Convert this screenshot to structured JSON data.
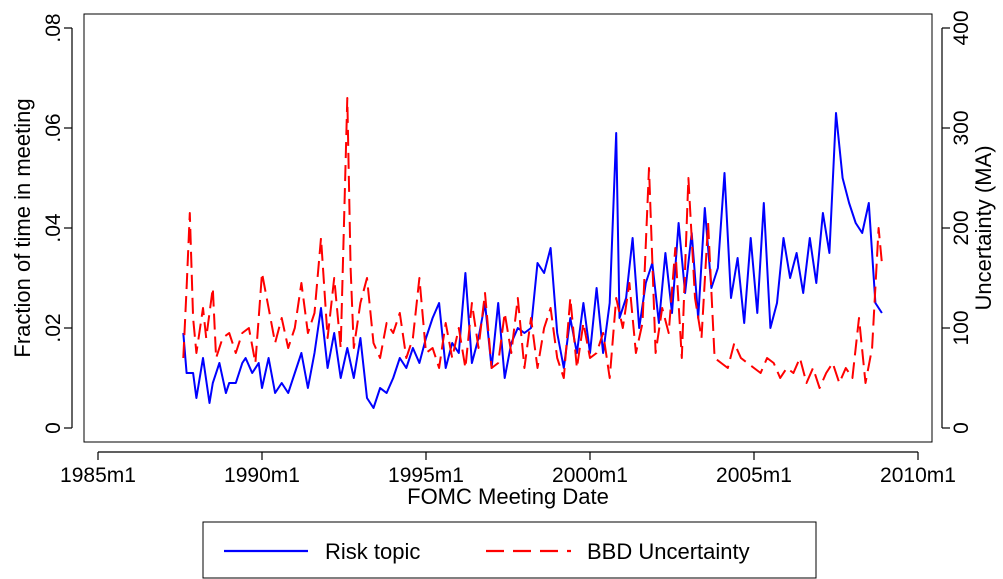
{
  "chart_data": {
    "type": "line",
    "xlabel": "FOMC Meeting Date",
    "ylabel_left": "Fraction of time in meeting",
    "ylabel_right": "Uncertainty (MA)",
    "x_ticks": [
      "1985m1",
      "1990m1",
      "1995m1",
      "2000m1",
      "2005m1",
      "2010m1"
    ],
    "y_left_ticks": [
      "0",
      ".02",
      ".04",
      ".06",
      ".08"
    ],
    "y_right_ticks": [
      "0",
      "100",
      "200",
      "300",
      "400"
    ],
    "xlim": [
      1985.0,
      2010.0
    ],
    "ylim_left": [
      0,
      0.08
    ],
    "ylim_right": [
      0,
      400
    ],
    "legend_position": "bottom-center",
    "grid": false,
    "series": [
      {
        "name": "Risk topic",
        "axis": "left",
        "color": "#0000ff",
        "style": "solid",
        "x": [
          1987.6,
          1987.7,
          1987.9,
          1988.0,
          1988.2,
          1988.4,
          1988.5,
          1988.7,
          1988.9,
          1989.0,
          1989.2,
          1989.4,
          1989.5,
          1989.7,
          1989.9,
          1990.0,
          1990.2,
          1990.4,
          1990.6,
          1990.8,
          1991.0,
          1991.2,
          1991.4,
          1991.6,
          1991.8,
          1992.0,
          1992.2,
          1992.4,
          1992.6,
          1992.8,
          1993.0,
          1993.2,
          1993.4,
          1993.6,
          1993.8,
          1994.0,
          1994.2,
          1994.4,
          1994.6,
          1994.8,
          1995.0,
          1995.2,
          1995.4,
          1995.6,
          1995.8,
          1996.0,
          1996.2,
          1996.4,
          1996.6,
          1996.8,
          1997.0,
          1997.2,
          1997.4,
          1997.6,
          1997.8,
          1998.0,
          1998.2,
          1998.4,
          1998.6,
          1998.8,
          1999.0,
          1999.2,
          1999.4,
          1999.6,
          1999.8,
          2000.0,
          2000.2,
          2000.4,
          2000.6,
          2000.8,
          2000.9,
          2001.1,
          2001.3,
          2001.5,
          2001.7,
          2001.9,
          2002.1,
          2002.3,
          2002.5,
          2002.7,
          2002.9,
          2003.1,
          2003.3,
          2003.5,
          2003.7,
          2003.9,
          2004.1,
          2004.3,
          2004.5,
          2004.7,
          2004.9,
          2005.1,
          2005.3,
          2005.5,
          2005.7,
          2005.9,
          2006.1,
          2006.3,
          2006.5,
          2006.7,
          2006.9,
          2007.1,
          2007.3,
          2007.5,
          2007.7,
          2007.9,
          2008.1,
          2008.3,
          2008.5,
          2008.7,
          2008.9
        ],
        "y": [
          0.019,
          0.011,
          0.011,
          0.006,
          0.014,
          0.005,
          0.009,
          0.013,
          0.007,
          0.009,
          0.009,
          0.013,
          0.014,
          0.011,
          0.013,
          0.008,
          0.014,
          0.007,
          0.009,
          0.007,
          0.011,
          0.015,
          0.008,
          0.015,
          0.024,
          0.012,
          0.019,
          0.01,
          0.016,
          0.01,
          0.018,
          0.006,
          0.004,
          0.008,
          0.007,
          0.01,
          0.014,
          0.012,
          0.016,
          0.013,
          0.018,
          0.022,
          0.025,
          0.012,
          0.017,
          0.015,
          0.031,
          0.013,
          0.018,
          0.025,
          0.012,
          0.025,
          0.01,
          0.017,
          0.02,
          0.019,
          0.02,
          0.033,
          0.031,
          0.036,
          0.019,
          0.012,
          0.022,
          0.015,
          0.025,
          0.015,
          0.028,
          0.015,
          0.025,
          0.059,
          0.022,
          0.026,
          0.038,
          0.02,
          0.029,
          0.033,
          0.021,
          0.035,
          0.023,
          0.041,
          0.027,
          0.039,
          0.022,
          0.044,
          0.028,
          0.032,
          0.051,
          0.026,
          0.034,
          0.021,
          0.038,
          0.023,
          0.045,
          0.02,
          0.025,
          0.038,
          0.03,
          0.035,
          0.027,
          0.038,
          0.029,
          0.043,
          0.035,
          0.063,
          0.05,
          0.045,
          0.041,
          0.039,
          0.045,
          0.025,
          0.023
        ]
      },
      {
        "name": "BBD Uncertainty",
        "axis": "right",
        "color": "#ff0000",
        "style": "dashed",
        "x": [
          1987.6,
          1987.7,
          1987.8,
          1987.9,
          1988.0,
          1988.2,
          1988.3,
          1988.5,
          1988.6,
          1988.8,
          1989.0,
          1989.2,
          1989.4,
          1989.6,
          1989.8,
          1990.0,
          1990.2,
          1990.4,
          1990.6,
          1990.8,
          1991.0,
          1991.2,
          1991.4,
          1991.6,
          1991.8,
          1992.0,
          1992.2,
          1992.4,
          1992.6,
          1992.7,
          1992.8,
          1993.0,
          1993.2,
          1993.4,
          1993.6,
          1993.8,
          1994.0,
          1994.2,
          1994.4,
          1994.6,
          1994.8,
          1995.0,
          1995.2,
          1995.4,
          1995.6,
          1995.8,
          1996.0,
          1996.2,
          1996.4,
          1996.6,
          1996.8,
          1997.0,
          1997.2,
          1997.4,
          1997.6,
          1997.8,
          1998.0,
          1998.2,
          1998.4,
          1998.6,
          1998.8,
          1999.0,
          1999.2,
          1999.4,
          1999.6,
          1999.8,
          2000.0,
          2000.2,
          2000.4,
          2000.6,
          2000.8,
          2001.0,
          2001.2,
          2001.4,
          2001.6,
          2001.8,
          2002.0,
          2002.2,
          2002.4,
          2002.6,
          2002.8,
          2003.0,
          2003.2,
          2003.4,
          2003.6,
          2003.8,
          2004.0,
          2004.2,
          2004.4,
          2004.6,
          2004.8,
          2005.0,
          2005.2,
          2005.4,
          2005.6,
          2005.8,
          2006.0,
          2006.2,
          2006.4,
          2006.6,
          2006.8,
          2007.0,
          2007.2,
          2007.4,
          2007.6,
          2007.8,
          2008.0,
          2008.2,
          2008.4,
          2008.6,
          2008.8,
          2008.9
        ],
        "y": [
          70,
          140,
          215,
          110,
          75,
          120,
          90,
          140,
          70,
          90,
          95,
          75,
          95,
          100,
          65,
          155,
          120,
          85,
          110,
          80,
          100,
          145,
          95,
          115,
          190,
          90,
          150,
          80,
          330,
          160,
          80,
          125,
          150,
          85,
          70,
          105,
          95,
          115,
          70,
          90,
          150,
          75,
          80,
          60,
          105,
          70,
          100,
          60,
          125,
          80,
          135,
          60,
          65,
          115,
          75,
          130,
          60,
          110,
          60,
          100,
          120,
          70,
          50,
          130,
          60,
          105,
          70,
          75,
          95,
          50,
          130,
          100,
          145,
          75,
          105,
          260,
          75,
          120,
          95,
          180,
          70,
          250,
          130,
          90,
          205,
          70,
          65,
          60,
          85,
          70,
          65,
          60,
          55,
          70,
          65,
          50,
          60,
          55,
          70,
          45,
          60,
          40,
          55,
          65,
          45,
          60,
          50,
          110,
          45,
          80,
          200,
          165
        ]
      }
    ]
  },
  "legend": {
    "items": [
      {
        "label": "Risk topic",
        "color": "#0000ff",
        "dashed": false
      },
      {
        "label": "BBD Uncertainty",
        "color": "#ff0000",
        "dashed": true
      }
    ]
  }
}
